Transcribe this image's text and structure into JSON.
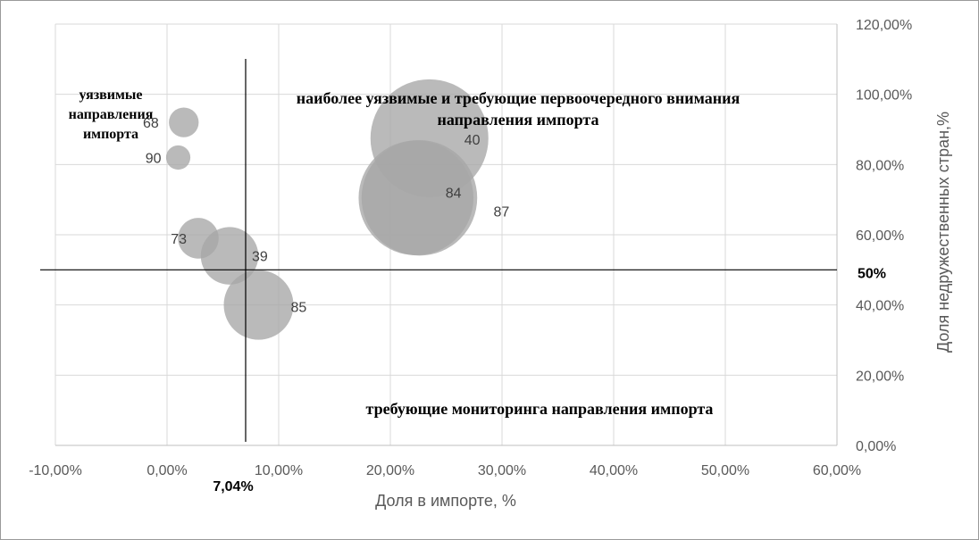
{
  "chart_data": {
    "type": "bubble",
    "xlabel": "Доля в импорте, %",
    "ylabel": "Доля недружественных стран,%",
    "xlim": [
      -0.1,
      0.6
    ],
    "ylim": [
      0.0,
      1.2
    ],
    "x_ticks": [
      -0.1,
      0.0,
      0.1,
      0.2,
      0.3,
      0.4,
      0.5,
      0.6
    ],
    "x_tick_labels": [
      "-10,00%",
      "0,00%",
      "10,00%",
      "20,00%",
      "30,00%",
      "40,00%",
      "50,00%",
      "60,00%"
    ],
    "y_ticks": [
      0.0,
      0.2,
      0.4,
      0.6,
      0.8,
      1.0,
      1.2
    ],
    "y_tick_labels": [
      "0,00%",
      "20,00%",
      "40,00%",
      "60,00%",
      "80,00%",
      "100,00%",
      "120,00%"
    ],
    "grid": "vertical and horizontal major gridlines",
    "y_axis_side": "right",
    "bubble_color": "#a6a6a6",
    "points": [
      {
        "label": "68",
        "x": 0.015,
        "y": 0.92,
        "size": 0.015
      },
      {
        "label": "90",
        "x": 0.01,
        "y": 0.82,
        "size": 0.01
      },
      {
        "label": "73",
        "x": 0.028,
        "y": 0.59,
        "size": 0.028
      },
      {
        "label": "39",
        "x": 0.056,
        "y": 0.54,
        "size": 0.056
      },
      {
        "label": "85",
        "x": 0.082,
        "y": 0.4,
        "size": 0.082
      },
      {
        "label": "40",
        "x": 0.235,
        "y": 0.875,
        "size": 0.235
      },
      {
        "label": "84",
        "x": 0.223,
        "y": 0.705,
        "size": 0.223
      },
      {
        "label": "87",
        "x": 0.226,
        "y": 0.705,
        "size": 0.226
      }
    ],
    "threshold_x": {
      "value": 0.0704,
      "label": "7,04%"
    },
    "threshold_y": {
      "value": 0.5,
      "label": "50%"
    },
    "annotations": {
      "top_left": [
        "уязвимые",
        "направления",
        "импорта"
      ],
      "top_right": [
        "наиболее уязвимые и требующие первоочередного внимания",
        "направления импорта"
      ],
      "bottom_right": "требующие мониторинга направления импорта"
    }
  }
}
